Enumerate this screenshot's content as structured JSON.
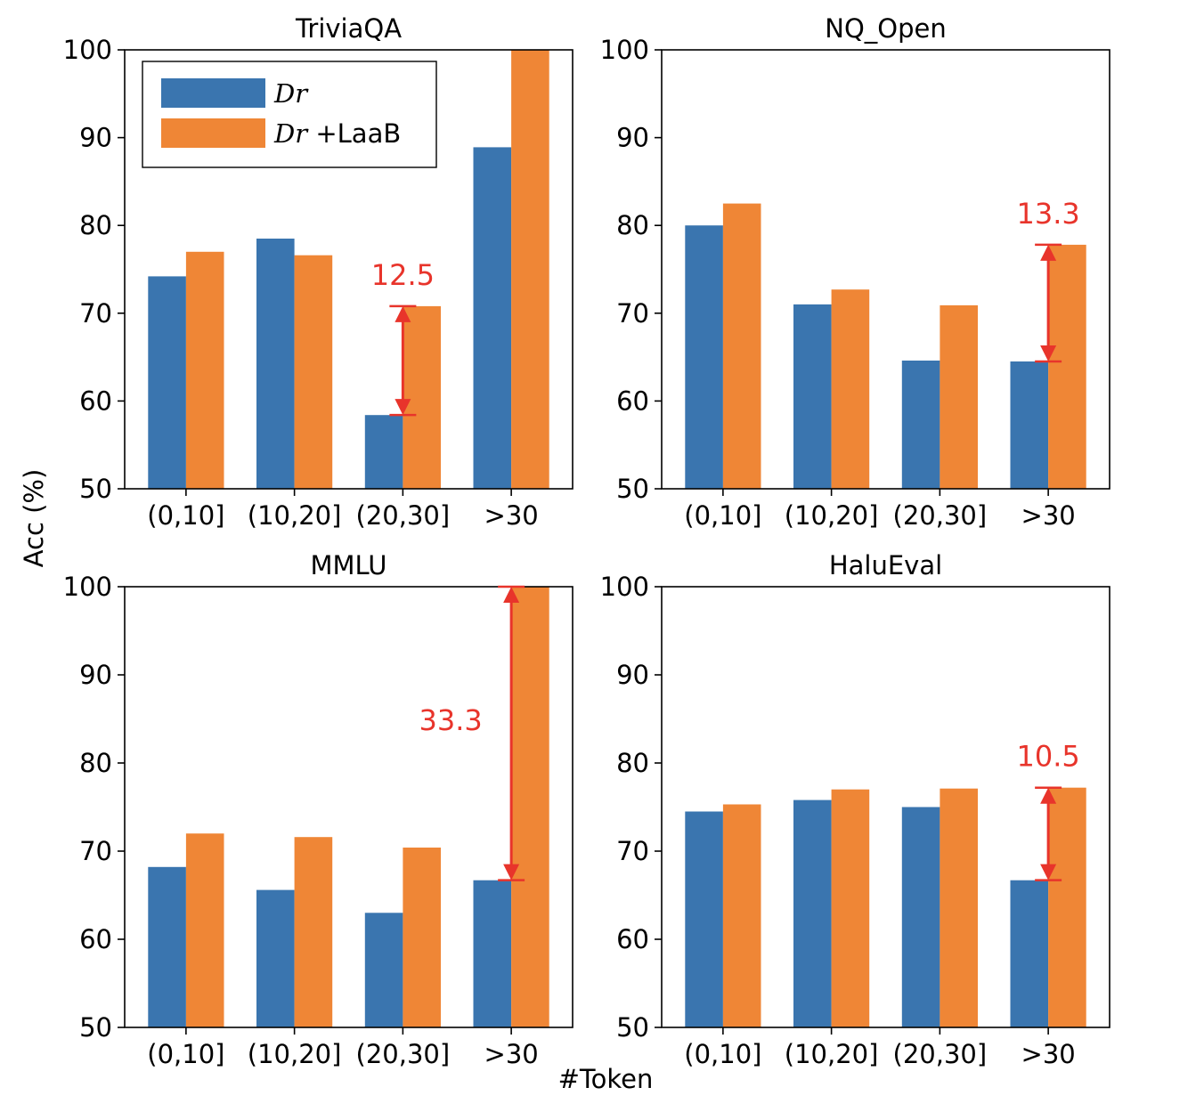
{
  "figure": {
    "ylabel": "Acc (%)",
    "xlabel": "#Token"
  },
  "colors": {
    "dr": "#3a75af",
    "dr_laab": "#ef8636",
    "annotation": "#e8342b"
  },
  "legend": {
    "placement": "upper-left of first panel",
    "entries": [
      {
        "math": "Dr",
        "suffix": ""
      },
      {
        "math": "Dr",
        "suffix": " +LaaB"
      }
    ]
  },
  "chart_data": [
    {
      "type": "bar",
      "title": "TriviaQA",
      "categories": [
        "(0,10]",
        "(10,20]",
        "(20,30]",
        ">30"
      ],
      "series": [
        {
          "name": "Dr",
          "values": [
            74.2,
            78.5,
            58.4,
            88.9
          ]
        },
        {
          "name": "Dr +LaaB",
          "values": [
            77.0,
            76.6,
            70.8,
            100.0
          ]
        }
      ],
      "ylim": [
        50,
        100
      ],
      "yticks": [
        50,
        60,
        70,
        80,
        90,
        100
      ],
      "annotation": {
        "category": 2,
        "from": 58.4,
        "to": 70.8,
        "label": "12.5"
      }
    },
    {
      "type": "bar",
      "title": "NQ_Open",
      "categories": [
        "(0,10]",
        "(10,20]",
        "(20,30]",
        ">30"
      ],
      "series": [
        {
          "name": "Dr",
          "values": [
            80.0,
            71.0,
            64.6,
            64.5
          ]
        },
        {
          "name": "Dr +LaaB",
          "values": [
            82.5,
            72.7,
            70.9,
            77.8
          ]
        }
      ],
      "ylim": [
        50,
        100
      ],
      "yticks": [
        50,
        60,
        70,
        80,
        90,
        100
      ],
      "annotation": {
        "category": 3,
        "from": 64.5,
        "to": 77.8,
        "label": "13.3"
      }
    },
    {
      "type": "bar",
      "title": "MMLU",
      "categories": [
        "(0,10]",
        "(10,20]",
        "(20,30]",
        ">30"
      ],
      "series": [
        {
          "name": "Dr",
          "values": [
            68.2,
            65.6,
            63.0,
            66.7
          ]
        },
        {
          "name": "Dr +LaaB",
          "values": [
            72.0,
            71.6,
            70.4,
            100.0
          ]
        }
      ],
      "ylim": [
        50,
        100
      ],
      "yticks": [
        50,
        60,
        70,
        80,
        90,
        100
      ],
      "annotation": {
        "category": 3,
        "from": 66.7,
        "to": 100.0,
        "label": "33.3"
      }
    },
    {
      "type": "bar",
      "title": "HaluEval",
      "categories": [
        "(0,10]",
        "(10,20]",
        "(20,30]",
        ">30"
      ],
      "series": [
        {
          "name": "Dr",
          "values": [
            74.5,
            75.8,
            75.0,
            66.7
          ]
        },
        {
          "name": "Dr +LaaB",
          "values": [
            75.3,
            77.0,
            77.1,
            77.2
          ]
        }
      ],
      "ylim": [
        50,
        100
      ],
      "yticks": [
        50,
        60,
        70,
        80,
        90,
        100
      ],
      "annotation": {
        "category": 3,
        "from": 66.7,
        "to": 77.2,
        "label": "10.5"
      }
    }
  ]
}
